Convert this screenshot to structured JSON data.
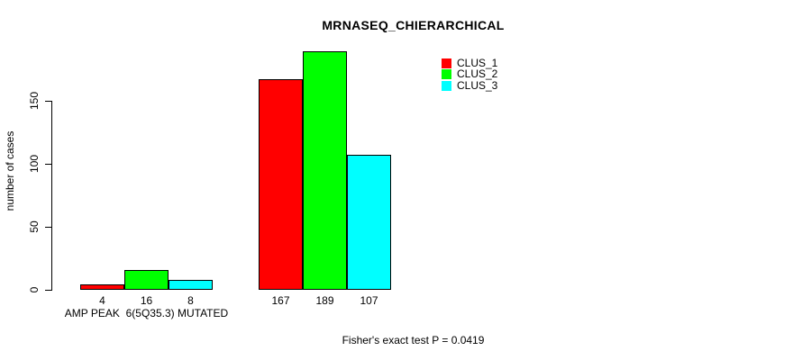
{
  "chart_data": {
    "type": "bar",
    "title": "MRNASEQ_CHIERARCHICAL",
    "ylabel": "number of cases",
    "footnote": "Fisher's exact test P = 0.0419",
    "categories": [
      "AMP PEAK  6(5Q35.3) MUTATED",
      ""
    ],
    "series": [
      {
        "name": "CLUS_1",
        "color": "#ff0000",
        "values": [
          4,
          167
        ]
      },
      {
        "name": "CLUS_2",
        "color": "#00ff00",
        "values": [
          16,
          189
        ]
      },
      {
        "name": "CLUS_3",
        "color": "#00ffff",
        "values": [
          8,
          107
        ]
      }
    ],
    "yticks": [
      0,
      50,
      100,
      150
    ],
    "ylim": [
      0,
      195
    ],
    "bar_labels": [
      [
        "4",
        "16",
        "8"
      ],
      [
        "167",
        "189",
        "107"
      ]
    ],
    "legend_position": "top-right",
    "grid": false,
    "background_color": "#ffffff",
    "bar_border_color": "#000000"
  }
}
